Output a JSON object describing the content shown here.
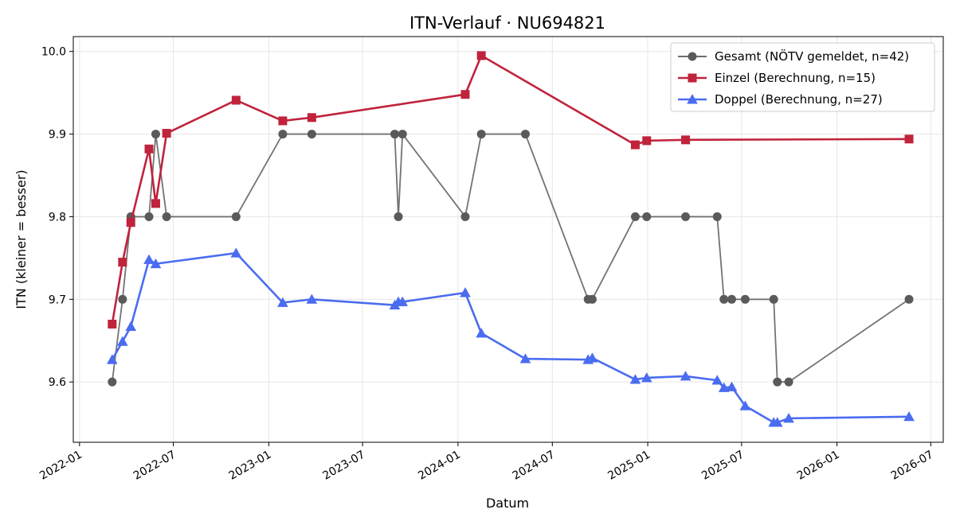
{
  "chart_data": {
    "type": "line",
    "title": "ITN-Verlauf · NU694821",
    "xlabel": "Datum",
    "ylabel": "ITN  (kleiner = besser)",
    "xlim": [
      "2021-12-20",
      "2026-07-25"
    ],
    "ylim": [
      9.527,
      10.018
    ],
    "grid": true,
    "legend_position": "top-right",
    "x_ticks": [
      "2022-01-01",
      "2022-07-01",
      "2023-01-01",
      "2023-07-01",
      "2024-01-01",
      "2024-07-01",
      "2025-01-01",
      "2025-07-01",
      "2026-01-01",
      "2026-07-01"
    ],
    "x_tick_labels": [
      "2022-01",
      "2022-07",
      "2023-01",
      "2023-07",
      "2024-01",
      "2024-07",
      "2025-01",
      "2025-07",
      "2026-01",
      "2026-07"
    ],
    "y_ticks": [
      9.6,
      9.7,
      9.8,
      9.9,
      10.0
    ],
    "y_tick_labels": [
      "9.6",
      "9.7",
      "9.8",
      "9.9",
      "10.0"
    ],
    "series": [
      {
        "name": "Gesamt (NÖTV gemeldet, n=42)",
        "color": "#5a5a5a",
        "marker": "circle",
        "points": [
          [
            "2022-03-05",
            9.6
          ],
          [
            "2022-03-25",
            9.7
          ],
          [
            "2022-04-10",
            9.8
          ],
          [
            "2022-05-15",
            9.8
          ],
          [
            "2022-05-28",
            9.9
          ],
          [
            "2022-06-18",
            9.8
          ],
          [
            "2022-10-30",
            9.8
          ],
          [
            "2023-01-28",
            9.9
          ],
          [
            "2023-03-25",
            9.9
          ],
          [
            "2023-09-01",
            9.9
          ],
          [
            "2023-09-08",
            9.8
          ],
          [
            "2023-09-16",
            9.9
          ],
          [
            "2024-01-15",
            9.8
          ],
          [
            "2024-02-15",
            9.9
          ],
          [
            "2024-05-10",
            9.9
          ],
          [
            "2024-09-08",
            9.7
          ],
          [
            "2024-09-16",
            9.7
          ],
          [
            "2024-12-08",
            9.8
          ],
          [
            "2024-12-30",
            9.8
          ],
          [
            "2025-03-15",
            9.8
          ],
          [
            "2025-05-15",
            9.8
          ],
          [
            "2025-05-28",
            9.7
          ],
          [
            "2025-06-12",
            9.7
          ],
          [
            "2025-07-08",
            9.7
          ],
          [
            "2025-09-01",
            9.7
          ],
          [
            "2025-09-08",
            9.6
          ],
          [
            "2025-09-30",
            9.6
          ],
          [
            "2026-05-20",
            9.7
          ]
        ]
      },
      {
        "name": "Einzel (Berechnung, n=15)",
        "color": "#c0233c",
        "marker": "square",
        "points": [
          [
            "2022-03-05",
            9.67
          ],
          [
            "2022-03-25",
            9.745
          ],
          [
            "2022-04-10",
            9.793
          ],
          [
            "2022-05-15",
            9.882
          ],
          [
            "2022-05-28",
            9.816
          ],
          [
            "2022-06-18",
            9.901
          ],
          [
            "2022-10-30",
            9.941
          ],
          [
            "2023-01-28",
            9.916
          ],
          [
            "2023-03-25",
            9.92
          ],
          [
            "2024-01-15",
            9.948
          ],
          [
            "2024-02-15",
            9.995
          ],
          [
            "2024-12-08",
            9.887
          ],
          [
            "2024-12-30",
            9.892
          ],
          [
            "2025-03-15",
            9.893
          ],
          [
            "2026-05-20",
            9.894
          ]
        ]
      },
      {
        "name": "Doppel (Berechnung, n=27)",
        "color": "#4a6cf0",
        "marker": "triangle",
        "points": [
          [
            "2022-03-05",
            9.627
          ],
          [
            "2022-03-25",
            9.649
          ],
          [
            "2022-04-10",
            9.667
          ],
          [
            "2022-05-15",
            9.748
          ],
          [
            "2022-05-28",
            9.743
          ],
          [
            "2022-10-30",
            9.756
          ],
          [
            "2023-01-28",
            9.696
          ],
          [
            "2023-03-25",
            9.7
          ],
          [
            "2023-09-01",
            9.693
          ],
          [
            "2023-09-08",
            9.697
          ],
          [
            "2023-09-16",
            9.697
          ],
          [
            "2024-01-15",
            9.708
          ],
          [
            "2024-02-15",
            9.659
          ],
          [
            "2024-05-10",
            9.628
          ],
          [
            "2024-09-08",
            9.627
          ],
          [
            "2024-09-16",
            9.629
          ],
          [
            "2024-12-08",
            9.603
          ],
          [
            "2024-12-30",
            9.605
          ],
          [
            "2025-03-15",
            9.607
          ],
          [
            "2025-05-15",
            9.602
          ],
          [
            "2025-05-28",
            9.593
          ],
          [
            "2025-06-12",
            9.594
          ],
          [
            "2025-07-08",
            9.571
          ],
          [
            "2025-09-01",
            9.551
          ],
          [
            "2025-09-08",
            9.551
          ],
          [
            "2025-09-30",
            9.556
          ],
          [
            "2026-05-20",
            9.558
          ]
        ]
      }
    ]
  }
}
